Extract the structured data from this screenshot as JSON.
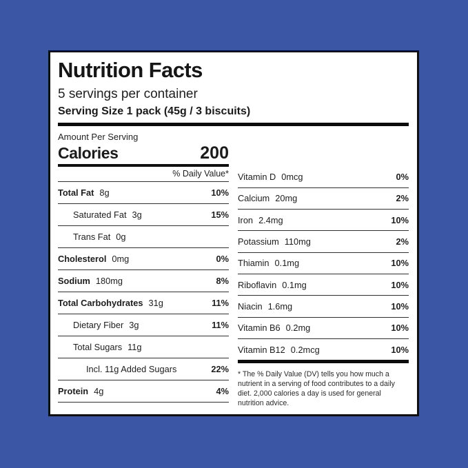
{
  "colors": {
    "page_background": "#3A56A4",
    "card_background": "#FFFFFF",
    "text": "#1B1B1B",
    "rule": "#2E2E2E"
  },
  "label": {
    "title": "Nutrition Facts",
    "servings_per_container": "5 servings per container",
    "serving_size": "Serving Size 1 pack (45g / 3 biscuits)",
    "amount_per_serving": "Amount Per Serving",
    "calories_label": "Calories",
    "calories_value": "200",
    "daily_value_header": "% Daily Value*",
    "left_rows": [
      {
        "name": "Total Fat",
        "amount": "8g",
        "dv": "10%",
        "bold": true,
        "indent": 0
      },
      {
        "name": "Saturated Fat",
        "amount": "3g",
        "dv": "15%",
        "bold": false,
        "indent": 1
      },
      {
        "name": "Trans Fat",
        "amount": "0g",
        "dv": "",
        "bold": false,
        "indent": 1
      },
      {
        "name": "Cholesterol",
        "amount": "0mg",
        "dv": "0%",
        "bold": true,
        "indent": 0
      },
      {
        "name": "Sodium",
        "amount": "180mg",
        "dv": "8%",
        "bold": true,
        "indent": 0
      },
      {
        "name": "Total Carbohydrates",
        "amount": "31g",
        "dv": "11%",
        "bold": true,
        "indent": 0
      },
      {
        "name": "Dietary Fiber",
        "amount": "3g",
        "dv": "11%",
        "bold": false,
        "indent": 1
      },
      {
        "name": "Total Sugars",
        "amount": "11g",
        "dv": "",
        "bold": false,
        "indent": 1
      },
      {
        "name": "Incl. 11g Added Sugars",
        "amount": "",
        "dv": "22%",
        "bold": false,
        "indent": 2
      },
      {
        "name": "Protein",
        "amount": "4g",
        "dv": "4%",
        "bold": true,
        "indent": 0
      }
    ],
    "right_rows": [
      {
        "name": "Vitamin D",
        "amount": "0mcg",
        "dv": "0%"
      },
      {
        "name": "Calcium",
        "amount": "20mg",
        "dv": "2%"
      },
      {
        "name": "Iron",
        "amount": "2.4mg",
        "dv": "10%"
      },
      {
        "name": "Potassium",
        "amount": "110mg",
        "dv": "2%"
      },
      {
        "name": "Thiamin",
        "amount": "0.1mg",
        "dv": "10%"
      },
      {
        "name": "Riboflavin",
        "amount": "0.1mg",
        "dv": "10%"
      },
      {
        "name": "Niacin",
        "amount": "1.6mg",
        "dv": "10%"
      },
      {
        "name": "Vitamin B6",
        "amount": "0.2mg",
        "dv": "10%"
      },
      {
        "name": "Vitamin B12",
        "amount": "0.2mcg",
        "dv": "10%"
      }
    ],
    "footnote": "* The % Daily Value (DV) tells you how much a nutrient in a serving of food contributes to a daily diet. 2,000 calories a day is used for general nutrition advice."
  }
}
